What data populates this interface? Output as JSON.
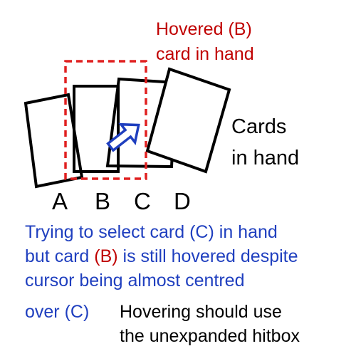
{
  "hover_label": {
    "line1_prefix": "Hovered ",
    "line1_marker": "(B)",
    "line2": "card in hand"
  },
  "cards_label": {
    "line1": "Cards",
    "line2": "in hand"
  },
  "card_letters": [
    "A",
    "B",
    "C",
    "D"
  ],
  "caption": {
    "line1_a": "Trying to select card ",
    "line1_marker": "(C)",
    "line1_b": " in hand",
    "line2_a": "but card ",
    "line2_marker": "(B)",
    "line2_b": " is still hovered despite",
    "line3": "cursor being almost centred",
    "line4": "over (C)"
  },
  "note": {
    "line1": "Hovering should use",
    "line2": "the unexpanded hitbox"
  },
  "colors": {
    "hover_red": "#c00000",
    "caption_blue": "#1f3fbf",
    "card_stroke": "#000000",
    "cursor_arrow": "#1f3fbf"
  }
}
